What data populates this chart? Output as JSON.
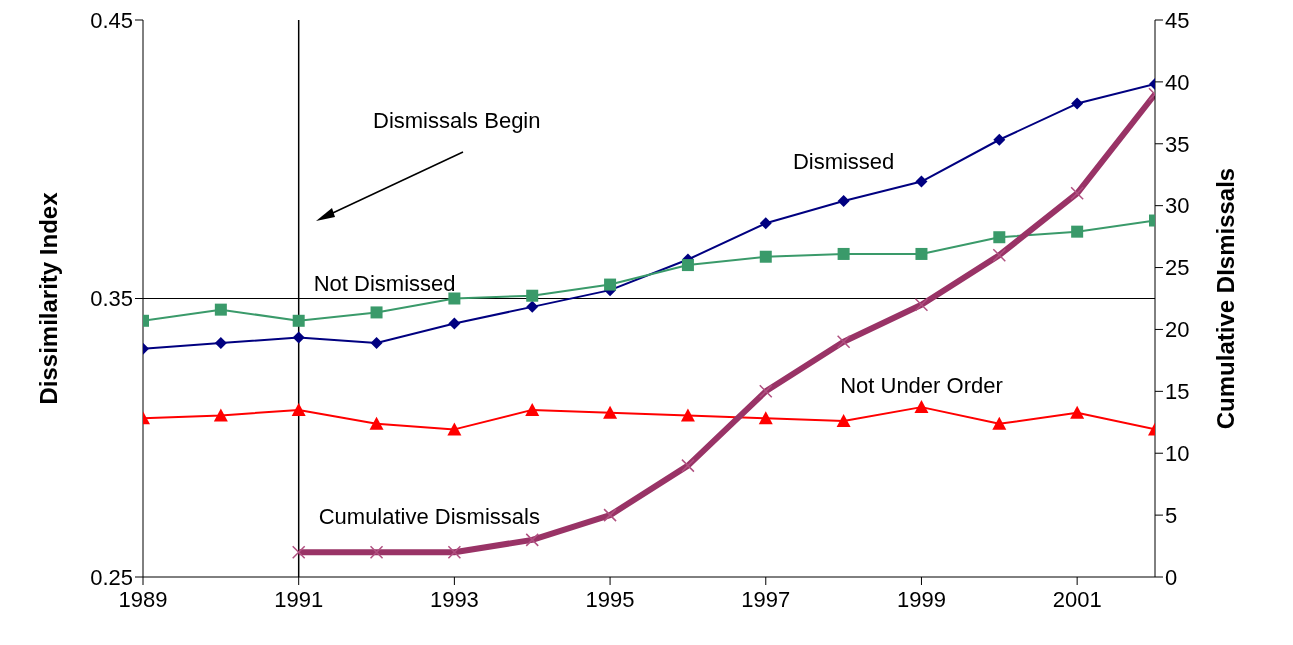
{
  "chart_data": {
    "type": "line",
    "xlabel": null,
    "ylabel": "Dissimilarity Index",
    "y2label": "Cumulative DIsmissals",
    "x": [
      1989,
      1990,
      1991,
      1992,
      1993,
      1994,
      1995,
      1996,
      1997,
      1998,
      1999,
      2000,
      2001,
      2002
    ],
    "series": [
      {
        "name": "Dismissed",
        "color": "#000080",
        "marker": "diamond",
        "values": [
          0.332,
          0.334,
          0.336,
          0.334,
          0.341,
          0.347,
          0.353,
          0.364,
          0.377,
          0.385,
          0.392,
          0.407,
          0.42,
          0.427
        ]
      },
      {
        "name": "Not Dismissed",
        "color": "#3a9a6a",
        "marker": "square",
        "values": [
          0.342,
          0.346,
          0.342,
          0.345,
          0.35,
          0.351,
          0.355,
          0.362,
          0.365,
          0.366,
          0.366,
          0.372,
          0.374,
          0.378
        ]
      },
      {
        "name": "Not Under Order",
        "color": "#ff0000",
        "marker": "triangle",
        "values": [
          0.307,
          0.308,
          0.31,
          0.305,
          0.303,
          0.31,
          0.309,
          0.308,
          0.307,
          0.306,
          0.311,
          0.305,
          0.309,
          0.303
        ]
      },
      {
        "name": "Cumulative Dismissals",
        "color": "#993366",
        "marker": "cross",
        "axis": "y2",
        "values": [
          null,
          null,
          2,
          2,
          2,
          3,
          5,
          9,
          15,
          19,
          22,
          26,
          31,
          39
        ]
      }
    ],
    "xlim": [
      1989,
      2002
    ],
    "xticks": [
      1989,
      1991,
      1993,
      1995,
      1997,
      1999,
      2001
    ],
    "ylim": [
      0.25,
      0.45
    ],
    "yticks": [
      0.25,
      0.35,
      0.45
    ],
    "y2lim": [
      0,
      45
    ],
    "y2ticks": [
      0,
      5,
      10,
      15,
      20,
      25,
      30,
      35,
      40,
      45
    ],
    "ref_lines": [
      {
        "axis": "x",
        "value": 1991,
        "label": null,
        "color": "#000000"
      },
      {
        "axis": "y",
        "value": 0.35,
        "label": null,
        "color": "#000000"
      }
    ],
    "annotations": [
      "Dismissals Begin"
    ],
    "legend": false
  }
}
